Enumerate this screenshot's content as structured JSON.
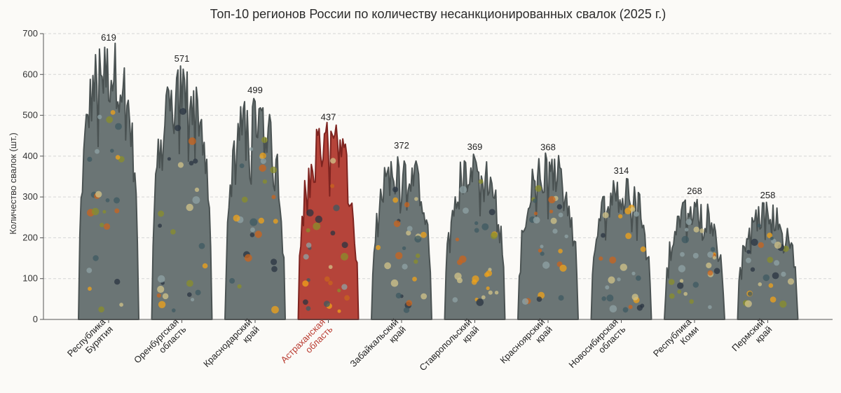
{
  "colors": {
    "default_fill": "#6b7575",
    "default_stroke": "#4a5252",
    "highlight_fill": "#b5443a",
    "highlight_stroke": "#7e2420",
    "highlight_label": "#b8392e",
    "dot_colors": [
      "#f0a31a",
      "#2a3442",
      "#8a8f2b",
      "#d1c48a",
      "#c9641e",
      "#8fa3a6",
      "#3d5a61"
    ]
  },
  "chart_data": {
    "type": "area",
    "title": "Топ-10 регионов России по количеству несанкционированных свалок (2025 г.)",
    "ylabel": "Количество свалок (шт.)",
    "xlabel": "",
    "ylim": [
      0,
      700
    ],
    "yticks": [
      0,
      100,
      200,
      300,
      400,
      500,
      600,
      700
    ],
    "grid": true,
    "highlight_index": 3,
    "categories": [
      "Республика Бурятия",
      "Оренбургская область",
      "Краснодарский край",
      "Астраханская область",
      "Забайкальский край",
      "Ставропольский край",
      "Красноярский край",
      "Новосибирская область",
      "Республика Коми",
      "Пермский край"
    ],
    "category_lines": [
      [
        "Республика",
        "Бурятия"
      ],
      [
        "Оренбургская",
        "область"
      ],
      [
        "Краснодарский",
        "край"
      ],
      [
        "Астраханская",
        "область"
      ],
      [
        "Забайкальский",
        "край"
      ],
      [
        "Ставропольский",
        "край"
      ],
      [
        "Красноярский",
        "край"
      ],
      [
        "Новосибирская",
        "область"
      ],
      [
        "Республика",
        "Коми"
      ],
      [
        "Пермский",
        "край"
      ]
    ],
    "values": [
      619,
      571,
      499,
      437,
      372,
      369,
      368,
      314,
      268,
      258
    ],
    "value_labels": [
      "619",
      "571",
      "499",
      "437",
      "372",
      "369",
      "368",
      "314",
      "268",
      "258"
    ],
    "ytick_labels": [
      "0",
      "100",
      "200",
      "300",
      "400",
      "500",
      "600",
      "700"
    ]
  }
}
